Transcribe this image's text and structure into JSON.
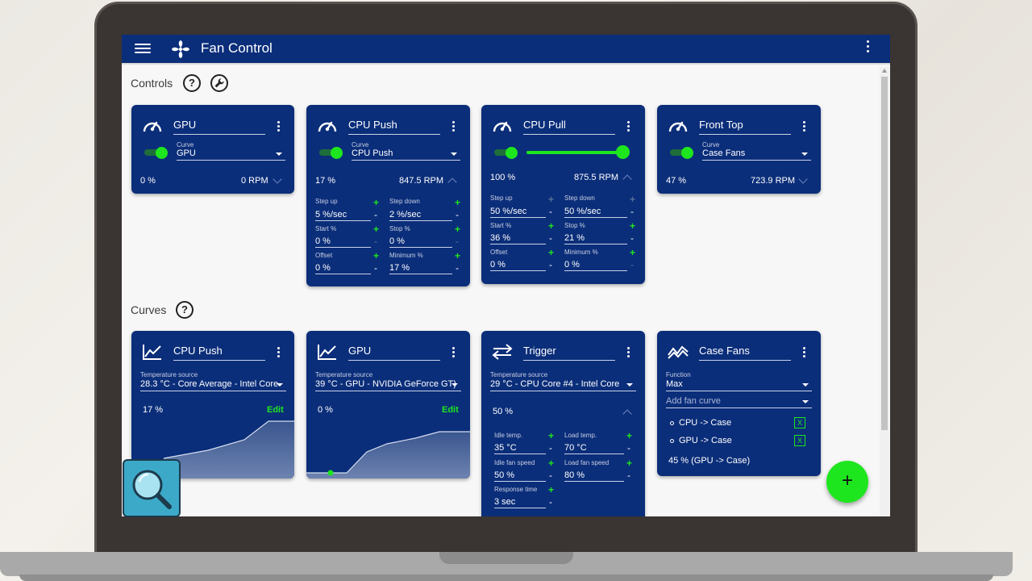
{
  "app": {
    "title": "Fan Control"
  },
  "sections": {
    "controls": "Controls",
    "curves": "Curves"
  },
  "icons": {
    "menu": "hamburger-menu-icon",
    "logo": "fan-icon",
    "more": "more-vert-icon",
    "help": "help-circle-icon",
    "wrench": "wrench-icon",
    "gauge": "speedometer-icon",
    "linear": "chart-line-icon",
    "trigger": "swap-horizontal-icon",
    "mix": "chart-mix-icon",
    "add": "plus-icon",
    "search": "magnifier-icon"
  },
  "colors": {
    "appbar": "#0b2e7a",
    "card": "#0b2e7a",
    "accent": "#1ee61e",
    "background": "#f7f7f7"
  },
  "controls": [
    {
      "name": "GPU",
      "curve_label": "Curve",
      "curve": "GPU",
      "enabled": true,
      "percent": "0 %",
      "rpm": "0 RPM",
      "expanded": false
    },
    {
      "name": "CPU Push",
      "curve_label": "Curve",
      "curve": "CPU Push",
      "enabled": true,
      "percent": "17 %",
      "rpm": "847.5 RPM",
      "expanded": true,
      "params": {
        "step_up_label": "Step up",
        "step_up": "5 %/sec",
        "step_down_label": "Step down",
        "step_down": "2 %/sec",
        "start_label": "Start %",
        "start": "0 %",
        "stop_label": "Stop %",
        "stop": "0 %",
        "offset_label": "Offset",
        "offset": "0 %",
        "minimum_label": "Minimum %",
        "minimum": "17 %"
      }
    },
    {
      "name": "CPU Pull",
      "manual_value": 1.0,
      "percent": "100 %",
      "rpm": "875.5 RPM",
      "expanded": true,
      "params": {
        "step_up_label": "Step up",
        "step_up": "50 %/sec",
        "step_down_label": "Step down",
        "step_down": "50 %/sec",
        "start_label": "Start %",
        "start": "36 %",
        "stop_label": "Stop %",
        "stop": "21 %",
        "offset_label": "Offset",
        "offset": "0 %",
        "minimum_label": "Minimum %",
        "minimum": "0 %"
      }
    },
    {
      "name": "Front Top",
      "curve_label": "Curve",
      "curve": "Case Fans",
      "enabled": true,
      "percent": "47 %",
      "rpm": "723.9 RPM",
      "expanded": false
    }
  ],
  "curves": [
    {
      "name": "CPU Push",
      "source_label": "Temperature source",
      "source": "28.3 °C - Core Average - Intel Core",
      "percent": "17 %",
      "edit": "Edit"
    },
    {
      "name": "GPU",
      "source_label": "Temperature source",
      "source": "39 °C - GPU - NVIDIA GeForce GT)",
      "percent": "0 %",
      "edit": "Edit"
    },
    {
      "name": "Trigger",
      "source_label": "Temperature source",
      "source": "29 °C - CPU Core #4 - Intel Core",
      "percent": "50 %",
      "params": {
        "idle_temp_label": "Idle temp.",
        "idle_temp": "35 °C",
        "load_temp_label": "Load temp.",
        "load_temp": "70 °C",
        "idle_speed_label": "Idle fan speed",
        "idle_speed": "50 %",
        "load_speed_label": "Load fan speed",
        "load_speed": "80 %",
        "response_label": "Response time",
        "response": "3 sec"
      }
    },
    {
      "name": "Case Fans",
      "function_label": "Function",
      "function": "Max",
      "add_curve": "Add fan curve",
      "items": [
        "CPU -> Case",
        "GPU -> Case"
      ],
      "remove": "X",
      "result": "45 % (GPU -> Case)"
    }
  ],
  "fab": {
    "label": "+"
  }
}
